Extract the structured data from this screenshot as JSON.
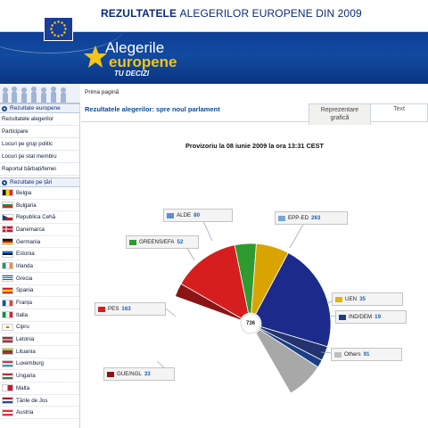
{
  "header": {
    "title_strong": "REZULTATELE",
    "title_rest": "ALEGERILOR EUROPENE DIN 2009"
  },
  "banner": {
    "brand_line1": "Alegerile",
    "brand_line2": "europene",
    "brand_line3": "TU DECIZI"
  },
  "breadcrumb": "Prima pagină",
  "sidebar": {
    "section1_title": "Rezultate europene",
    "links": [
      "Rezultatele alegerilor",
      "Participare",
      "Locuri pe grup politic",
      "Locuri pe stat membru",
      "Raportul bărbați/femei"
    ],
    "section2_title": "Rezultate pe țări",
    "countries": [
      {
        "name": "Belgia",
        "colors": [
          "#111111",
          "#f6d31c",
          "#e0262c"
        ],
        "dir": "v"
      },
      {
        "name": "Bulgaria",
        "colors": [
          "#ffffff",
          "#2a8a4a",
          "#d62612"
        ],
        "dir": "h"
      },
      {
        "name": "Republica Cehă",
        "colors": [
          "#ffffff",
          "#d7141a",
          "#11457e"
        ],
        "dir": "cz"
      },
      {
        "name": "Danemarca",
        "colors": [
          "#c8102e",
          "#ffffff"
        ],
        "dir": "nordic"
      },
      {
        "name": "Germania",
        "colors": [
          "#111111",
          "#dd0000",
          "#ffce00"
        ],
        "dir": "h"
      },
      {
        "name": "Estonia",
        "colors": [
          "#0072ce",
          "#111111",
          "#ffffff"
        ],
        "dir": "h"
      },
      {
        "name": "Irlanda",
        "colors": [
          "#169b62",
          "#ffffff",
          "#ff883e"
        ],
        "dir": "v"
      },
      {
        "name": "Grecia",
        "colors": [
          "#0d5eaf",
          "#ffffff"
        ],
        "dir": "stripes"
      },
      {
        "name": "Spania",
        "colors": [
          "#c60b1e",
          "#ffc400",
          "#c60b1e"
        ],
        "dir": "es"
      },
      {
        "name": "Franța",
        "colors": [
          "#0055a4",
          "#ffffff",
          "#ef4135"
        ],
        "dir": "v"
      },
      {
        "name": "Italia",
        "colors": [
          "#009246",
          "#ffffff",
          "#ce2b37"
        ],
        "dir": "v"
      },
      {
        "name": "Cipru",
        "colors": [
          "#ffffff",
          "#d57800"
        ],
        "dir": "cy"
      },
      {
        "name": "Letonia",
        "colors": [
          "#9e3039",
          "#ffffff",
          "#9e3039"
        ],
        "dir": "lv"
      },
      {
        "name": "Lituania",
        "colors": [
          "#fdb913",
          "#006a44",
          "#c1272d"
        ],
        "dir": "h"
      },
      {
        "name": "Luxemburg",
        "colors": [
          "#ed2939",
          "#ffffff",
          "#00a1de"
        ],
        "dir": "h"
      },
      {
        "name": "Ungaria",
        "colors": [
          "#ce2939",
          "#ffffff",
          "#477050"
        ],
        "dir": "h"
      },
      {
        "name": "Malta",
        "colors": [
          "#ffffff",
          "#cf142b"
        ],
        "dir": "v2"
      },
      {
        "name": "Țările de Jos",
        "colors": [
          "#ae1c28",
          "#ffffff",
          "#21468b"
        ],
        "dir": "h"
      },
      {
        "name": "Austria",
        "colors": [
          "#ed2939",
          "#ffffff",
          "#ed2939"
        ],
        "dir": "h"
      }
    ]
  },
  "main": {
    "heading": "Rezultatele alegerilor: spre noul parlament",
    "tab_graph_line1": "Reprezentare",
    "tab_graph_line2": "grafică",
    "tab_text": "Text",
    "status": "Provizoriu la 08 iunie 2009 la ora 13:31 CEST"
  },
  "chart_data": {
    "type": "pie",
    "title": "",
    "total_label": "736",
    "categories": [
      "GUE/NGL",
      "PES",
      "GREENS/EFA",
      "ALDE",
      "EPP-ED",
      "UEN",
      "IND/DEM",
      "Others"
    ],
    "values": [
      33,
      163,
      52,
      80,
      263,
      35,
      19,
      91
    ],
    "colors": [
      "#8b1414",
      "#d71e1e",
      "#2f9a2f",
      "#d9a400",
      "#1c2a8c",
      "#23336f",
      "#1a3f86",
      "#a8a8a8"
    ],
    "legend_placement": "callouts around chart"
  }
}
